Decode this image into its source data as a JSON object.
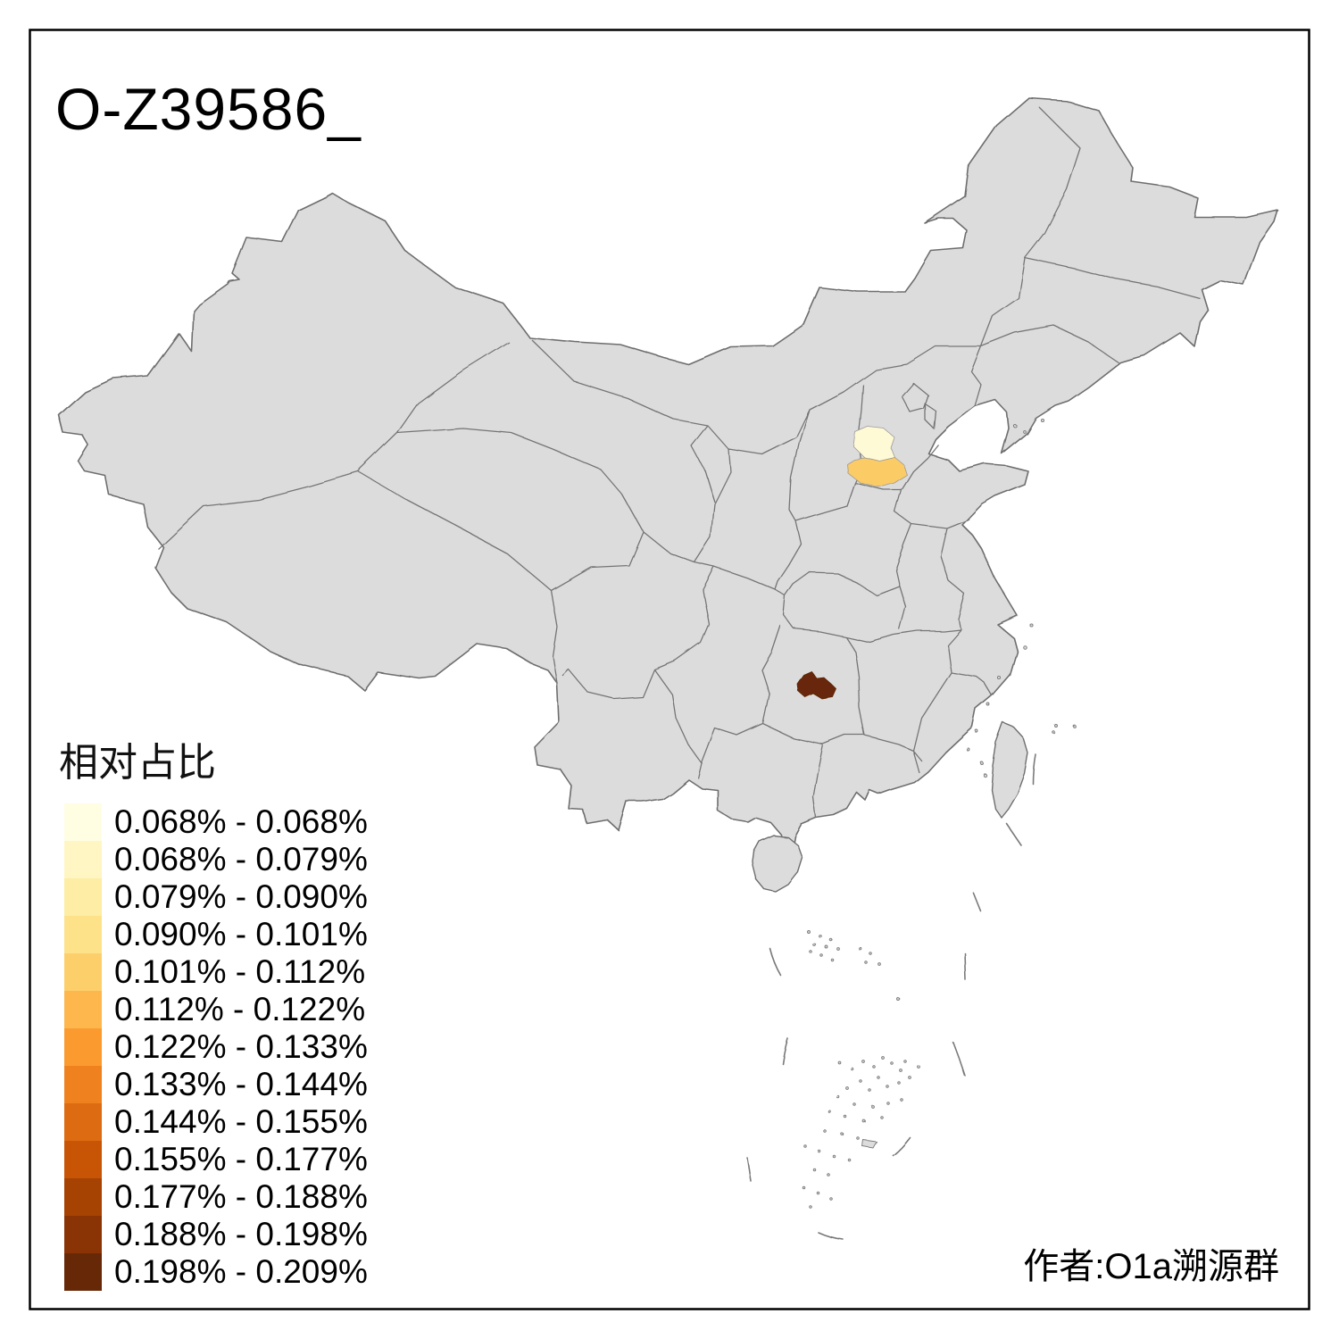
{
  "title": "O-Z39586_",
  "legend": {
    "title": "相对占比",
    "classes": [
      {
        "label": "0.068% - 0.068%",
        "color": "#FFFEE3"
      },
      {
        "label": "0.068% - 0.079%",
        "color": "#FFF6C3"
      },
      {
        "label": "0.079% - 0.090%",
        "color": "#FEEDA4"
      },
      {
        "label": "0.090% - 0.101%",
        "color": "#FDE28A"
      },
      {
        "label": "0.101% - 0.112%",
        "color": "#FDCF6B"
      },
      {
        "label": "0.112% - 0.122%",
        "color": "#FDB74D"
      },
      {
        "label": "0.122% - 0.133%",
        "color": "#FB9B2F"
      },
      {
        "label": "0.133% - 0.144%",
        "color": "#EF821E"
      },
      {
        "label": "0.144% - 0.155%",
        "color": "#DC6B12"
      },
      {
        "label": "0.155% - 0.177%",
        "color": "#C75505"
      },
      {
        "label": "0.177% - 0.188%",
        "color": "#A64303"
      },
      {
        "label": "0.188% - 0.198%",
        "color": "#8A3305"
      },
      {
        "label": "0.198% - 0.209%",
        "color": "#672807"
      }
    ]
  },
  "footer": "作者:O1a溯源群",
  "map": {
    "land_fill": "#DCDCDC",
    "border_color": "#757575",
    "frame_color": "#000000",
    "highlights": [
      {
        "name": "hebei-north-highlight",
        "color": "#FFFAD6"
      },
      {
        "name": "hebei-south-highlight",
        "color": "#FBCB66"
      },
      {
        "name": "hunan-highlight",
        "color": "#672807"
      }
    ]
  }
}
